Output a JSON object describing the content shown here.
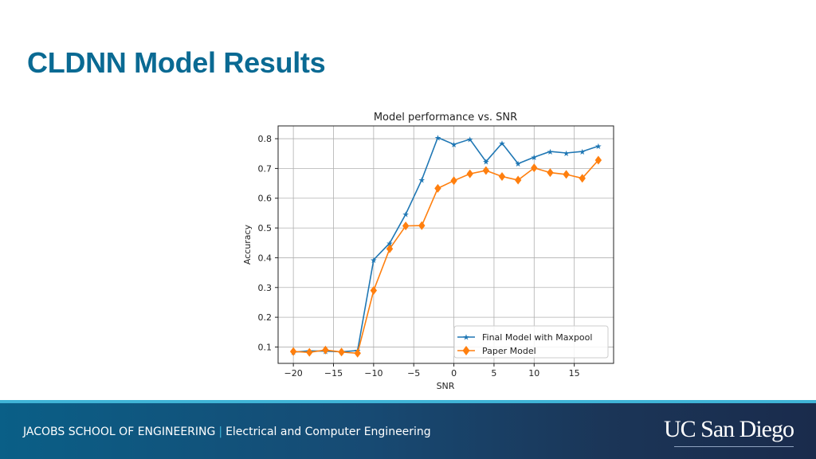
{
  "slide": {
    "title": "CLDNN Model Results"
  },
  "footer": {
    "school": "JACOBS SCHOOL OF ENGINEERING",
    "separator": "|",
    "department": "Electrical and Computer Engineering",
    "logo_text": "UC San Diego"
  },
  "colors": {
    "title": "#0a6a93",
    "series_blue": "#1f77b4",
    "series_orange": "#ff7f0e",
    "footer_accent": "#3fb3d6"
  },
  "chart_data": {
    "type": "line",
    "title": "Model performance vs. SNR",
    "xlabel": "SNR",
    "ylabel": "Accuracy",
    "x": [
      -20,
      -18,
      -16,
      -14,
      -12,
      -10,
      -8,
      -6,
      -4,
      -2,
      0,
      2,
      4,
      6,
      8,
      10,
      12,
      14,
      16,
      18
    ],
    "series": [
      {
        "name": "Final Model with Maxpool",
        "color": "#1f77b4",
        "marker": "star",
        "values": [
          0.083,
          0.087,
          0.086,
          0.084,
          0.088,
          0.393,
          0.449,
          0.546,
          0.662,
          0.804,
          0.781,
          0.798,
          0.723,
          0.785,
          0.716,
          0.738,
          0.757,
          0.752,
          0.757,
          0.775
        ]
      },
      {
        "name": "Paper Model",
        "color": "#ff7f0e",
        "marker": "diamond",
        "values": [
          0.085,
          0.082,
          0.09,
          0.083,
          0.079,
          0.29,
          0.43,
          0.507,
          0.508,
          0.633,
          0.659,
          0.682,
          0.693,
          0.673,
          0.661,
          0.702,
          0.686,
          0.68,
          0.667,
          0.728
        ]
      }
    ],
    "xticks": [
      -20,
      -15,
      -10,
      -5,
      0,
      5,
      10,
      15
    ],
    "xtick_labels": [
      "−20",
      "−15",
      "−10",
      "−5",
      "0",
      "5",
      "10",
      "15"
    ],
    "yticks": [
      0.1,
      0.2,
      0.3,
      0.4,
      0.5,
      0.6,
      0.7,
      0.8
    ],
    "ytick_labels": [
      "0.1",
      "0.2",
      "0.3",
      "0.4",
      "0.5",
      "0.6",
      "0.7",
      "0.8"
    ],
    "xlim": [
      -21.9,
      19.9
    ],
    "ylim": [
      0.045,
      0.843
    ],
    "grid": true,
    "legend_position": "lower right"
  }
}
